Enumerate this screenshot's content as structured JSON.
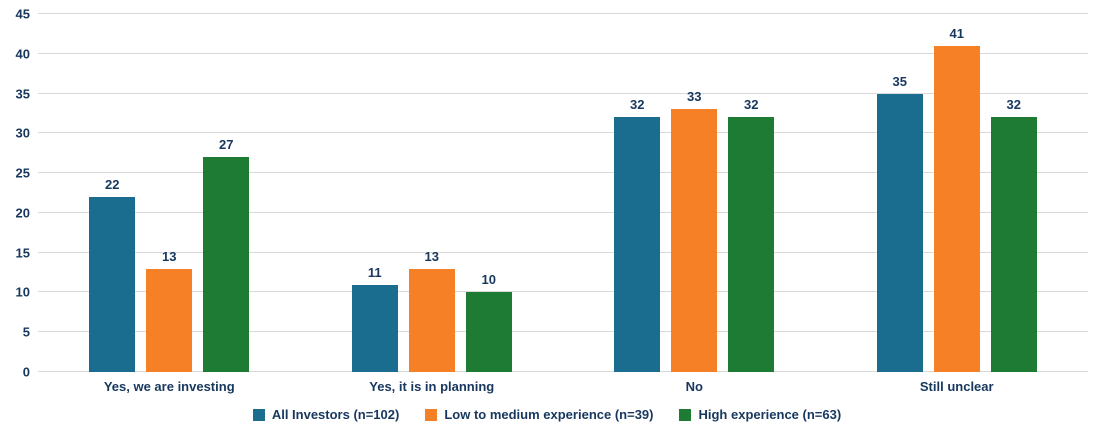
{
  "chart_data": {
    "type": "bar",
    "title": "",
    "xlabel": "",
    "ylabel": "",
    "categories": [
      "Yes, we are investing",
      "Yes, it is in planning",
      "No",
      "Still unclear"
    ],
    "series": [
      {
        "name": "All Investors (n=102)",
        "color": "#1b6d8f",
        "values": [
          22,
          11,
          32,
          35
        ]
      },
      {
        "name": "Low to medium experience (n=39)",
        "color": "#f58025",
        "values": [
          13,
          13,
          33,
          41
        ]
      },
      {
        "name": "High experience (n=63)",
        "color": "#1e7b33",
        "values": [
          27,
          10,
          32,
          32
        ]
      }
    ],
    "ylim": [
      0,
      45
    ],
    "ytick_step": 5,
    "grid": true,
    "legend_position": "bottom"
  },
  "style": {
    "text_color": "#17375e",
    "grid_color": "#d9d9d9",
    "background_color": "#ffffff"
  }
}
